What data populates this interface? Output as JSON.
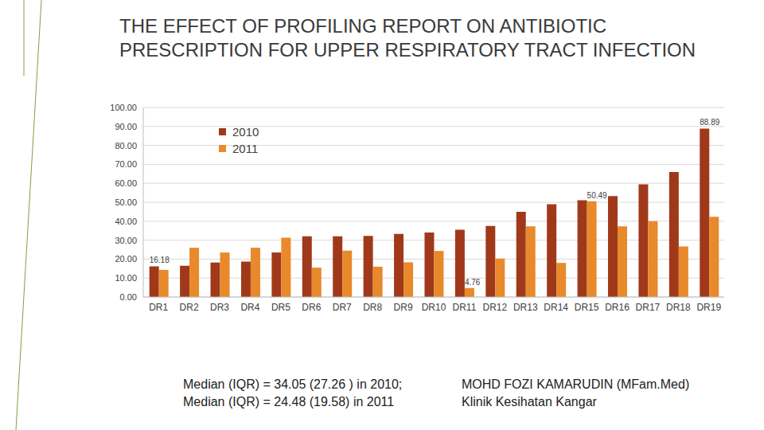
{
  "chart_data": {
    "type": "bar",
    "title": "THE EFFECT OF PROFILING REPORT ON ANTIBIOTIC PRESCRIPTION FOR UPPER RESPIRATORY TRACT INFECTION",
    "categories": [
      "DR1",
      "DR2",
      "DR3",
      "DR4",
      "DR5",
      "DR6",
      "DR7",
      "DR8",
      "DR9",
      "DR10",
      "DR11",
      "DR12",
      "DR13",
      "DR14",
      "DR15",
      "DR16",
      "DR17",
      "DR18",
      "DR19"
    ],
    "series": [
      {
        "name": "2010",
        "color": "#a0391a",
        "values": [
          16.18,
          16.5,
          18.2,
          18.7,
          23.5,
          32.0,
          32.0,
          32.3,
          33.3,
          34.05,
          35.5,
          37.5,
          45.0,
          49.0,
          51.0,
          53.3,
          59.5,
          66.0,
          88.89
        ],
        "value_labels": [
          "16.18",
          null,
          null,
          null,
          null,
          null,
          null,
          null,
          null,
          null,
          null,
          null,
          null,
          null,
          null,
          null,
          null,
          null,
          "88.89"
        ]
      },
      {
        "name": "2011",
        "color": "#e8892b",
        "values": [
          14.3,
          26.0,
          23.5,
          26.0,
          31.3,
          15.5,
          24.48,
          16.0,
          18.3,
          24.3,
          4.76,
          20.3,
          37.3,
          18.0,
          50.49,
          37.3,
          40.0,
          26.7,
          42.3
        ],
        "value_labels": [
          null,
          null,
          null,
          null,
          null,
          null,
          null,
          null,
          null,
          null,
          "4.76",
          null,
          null,
          null,
          "50.49",
          null,
          null,
          null,
          null
        ]
      }
    ],
    "ylim": [
      0,
      100
    ],
    "yticks": [
      {
        "value": 0,
        "label": "0.00"
      },
      {
        "value": 10,
        "label": "10.00"
      },
      {
        "value": 20,
        "label": "20.00"
      },
      {
        "value": 30,
        "label": "30.00"
      },
      {
        "value": 40,
        "label": "40.00"
      },
      {
        "value": 50,
        "label": "50.00"
      },
      {
        "value": 60,
        "label": "60.00"
      },
      {
        "value": 70,
        "label": "70.00"
      },
      {
        "value": 80,
        "label": "80.00"
      },
      {
        "value": 90,
        "label": "90.00"
      },
      {
        "value": 100,
        "label": "100.00"
      }
    ],
    "grid": true,
    "legend": "top-left",
    "annotations": [
      "Median (IQR) = 34.05 (27.26 ) in 2010;",
      "Median (IQR) = 24.48 (19.58) in 2011",
      "MOHD FOZI KAMARUDIN (MFam.Med)",
      "Klinik Kesihatan Kangar"
    ]
  }
}
